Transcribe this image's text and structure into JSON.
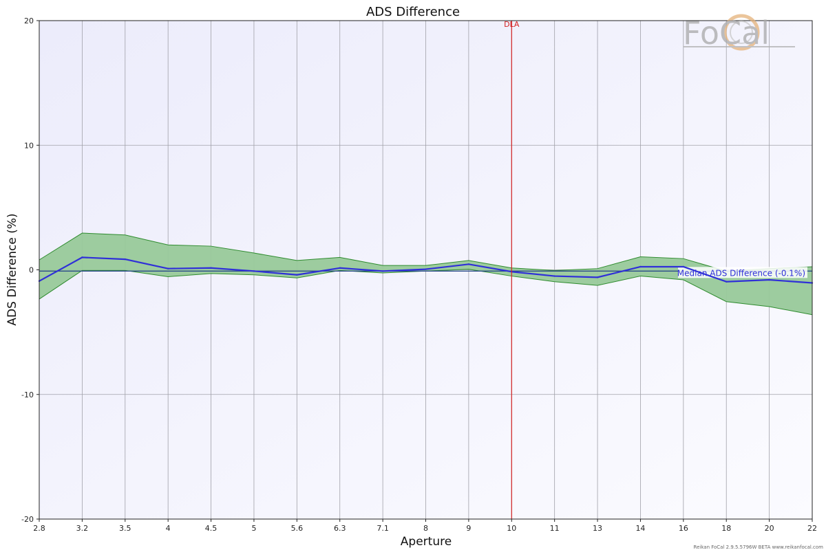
{
  "chart_data": {
    "type": "line",
    "title": "ADS Difference",
    "xlabel": "Aperture",
    "ylabel": "ADS Difference (%)",
    "categories": [
      "2.8",
      "3.2",
      "3.5",
      "4",
      "4.5",
      "5",
      "5.6",
      "6.3",
      "7.1",
      "8",
      "9",
      "10",
      "11",
      "13",
      "14",
      "16",
      "18",
      "20",
      "22"
    ],
    "ylim": [
      -20,
      20
    ],
    "yticks": [
      "20",
      "10",
      "0",
      "-10",
      "-20"
    ],
    "grid": true,
    "series": [
      {
        "type": "line",
        "values": [
          -0.9,
          1.0,
          0.85,
          0.1,
          0.15,
          -0.1,
          -0.4,
          0.15,
          -0.1,
          0.05,
          0.45,
          -0.15,
          -0.5,
          -0.6,
          0.25,
          0.25,
          -0.95,
          -0.8,
          -1.05
        ]
      },
      {
        "type": "area-range",
        "upper": [
          0.8,
          2.95,
          2.8,
          2.0,
          1.9,
          1.35,
          0.75,
          1.0,
          0.35,
          0.35,
          0.75,
          0.15,
          -0.05,
          0.1,
          1.05,
          0.9,
          -0.1,
          0.1,
          0.25
        ],
        "lower": [
          -2.35,
          -0.05,
          -0.05,
          -0.55,
          -0.3,
          -0.4,
          -0.65,
          -0.05,
          -0.25,
          -0.1,
          0.05,
          -0.5,
          -0.95,
          -1.25,
          -0.5,
          -0.8,
          -2.55,
          -2.95,
          -3.6
        ]
      },
      {
        "type": "reference",
        "value": -0.1,
        "label": "Median ADS Difference (-0.1%)"
      }
    ],
    "annotations": [
      {
        "text": "DLA",
        "x": "10"
      }
    ]
  },
  "logo": {
    "text": "FoCal"
  },
  "footer": "Reikan FoCal 2.9.5.5796W BETA  www.reikanfocal.com",
  "colors": {
    "band_fill": "#98c99a",
    "band_stroke": "#2e8b2e",
    "median_line": "#2f2fd8",
    "dla_line": "#d42020",
    "plot_bg_start": "#ececfb",
    "plot_bg_end": "#fbfbff",
    "grid": "#a0a0a8"
  }
}
